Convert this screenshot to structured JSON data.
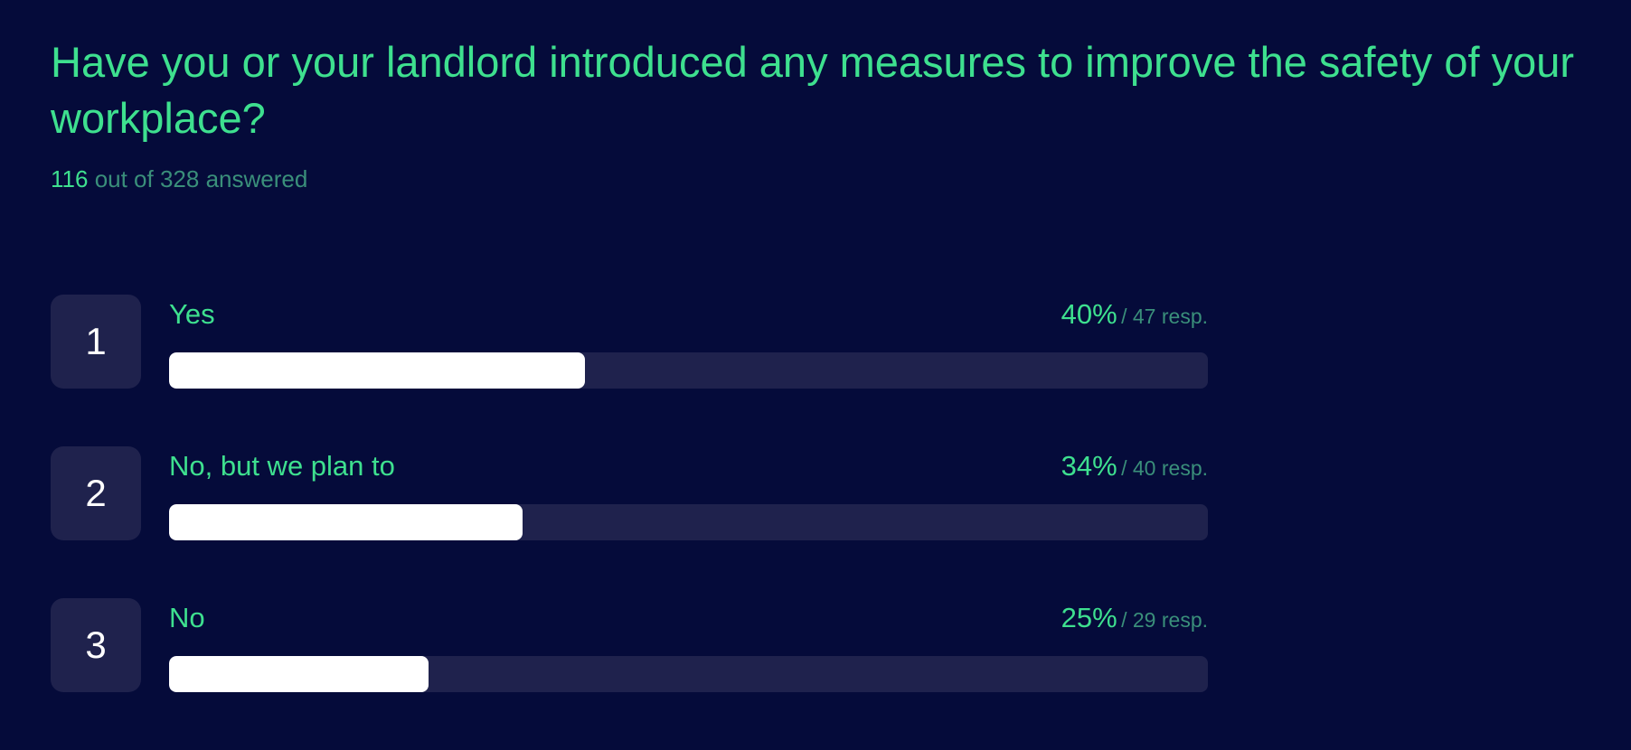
{
  "question": {
    "title": "Have you or your landlord introduced any measures to improve the safety of your workplace?",
    "answered_count": "116",
    "answered_suffix": "out of 328 answered"
  },
  "colors": {
    "background": "#050b3a",
    "accent": "#3ee08f",
    "muted_accent": "#3a8f7a",
    "track": "#1f224d",
    "bar_fill": "#ffffff"
  },
  "chart_data": {
    "type": "bar",
    "orientation": "horizontal",
    "categories": [
      "Yes",
      "No, but we plan to",
      "No"
    ],
    "values": [
      40,
      34,
      25
    ],
    "responses": [
      47,
      40,
      29
    ],
    "ranks": [
      "1",
      "2",
      "3"
    ],
    "value_labels": [
      "40%",
      "34%",
      "25%"
    ],
    "response_labels": [
      "/ 47 resp.",
      "/ 40 resp.",
      "/ 29 resp."
    ],
    "xlim": [
      0,
      100
    ]
  }
}
